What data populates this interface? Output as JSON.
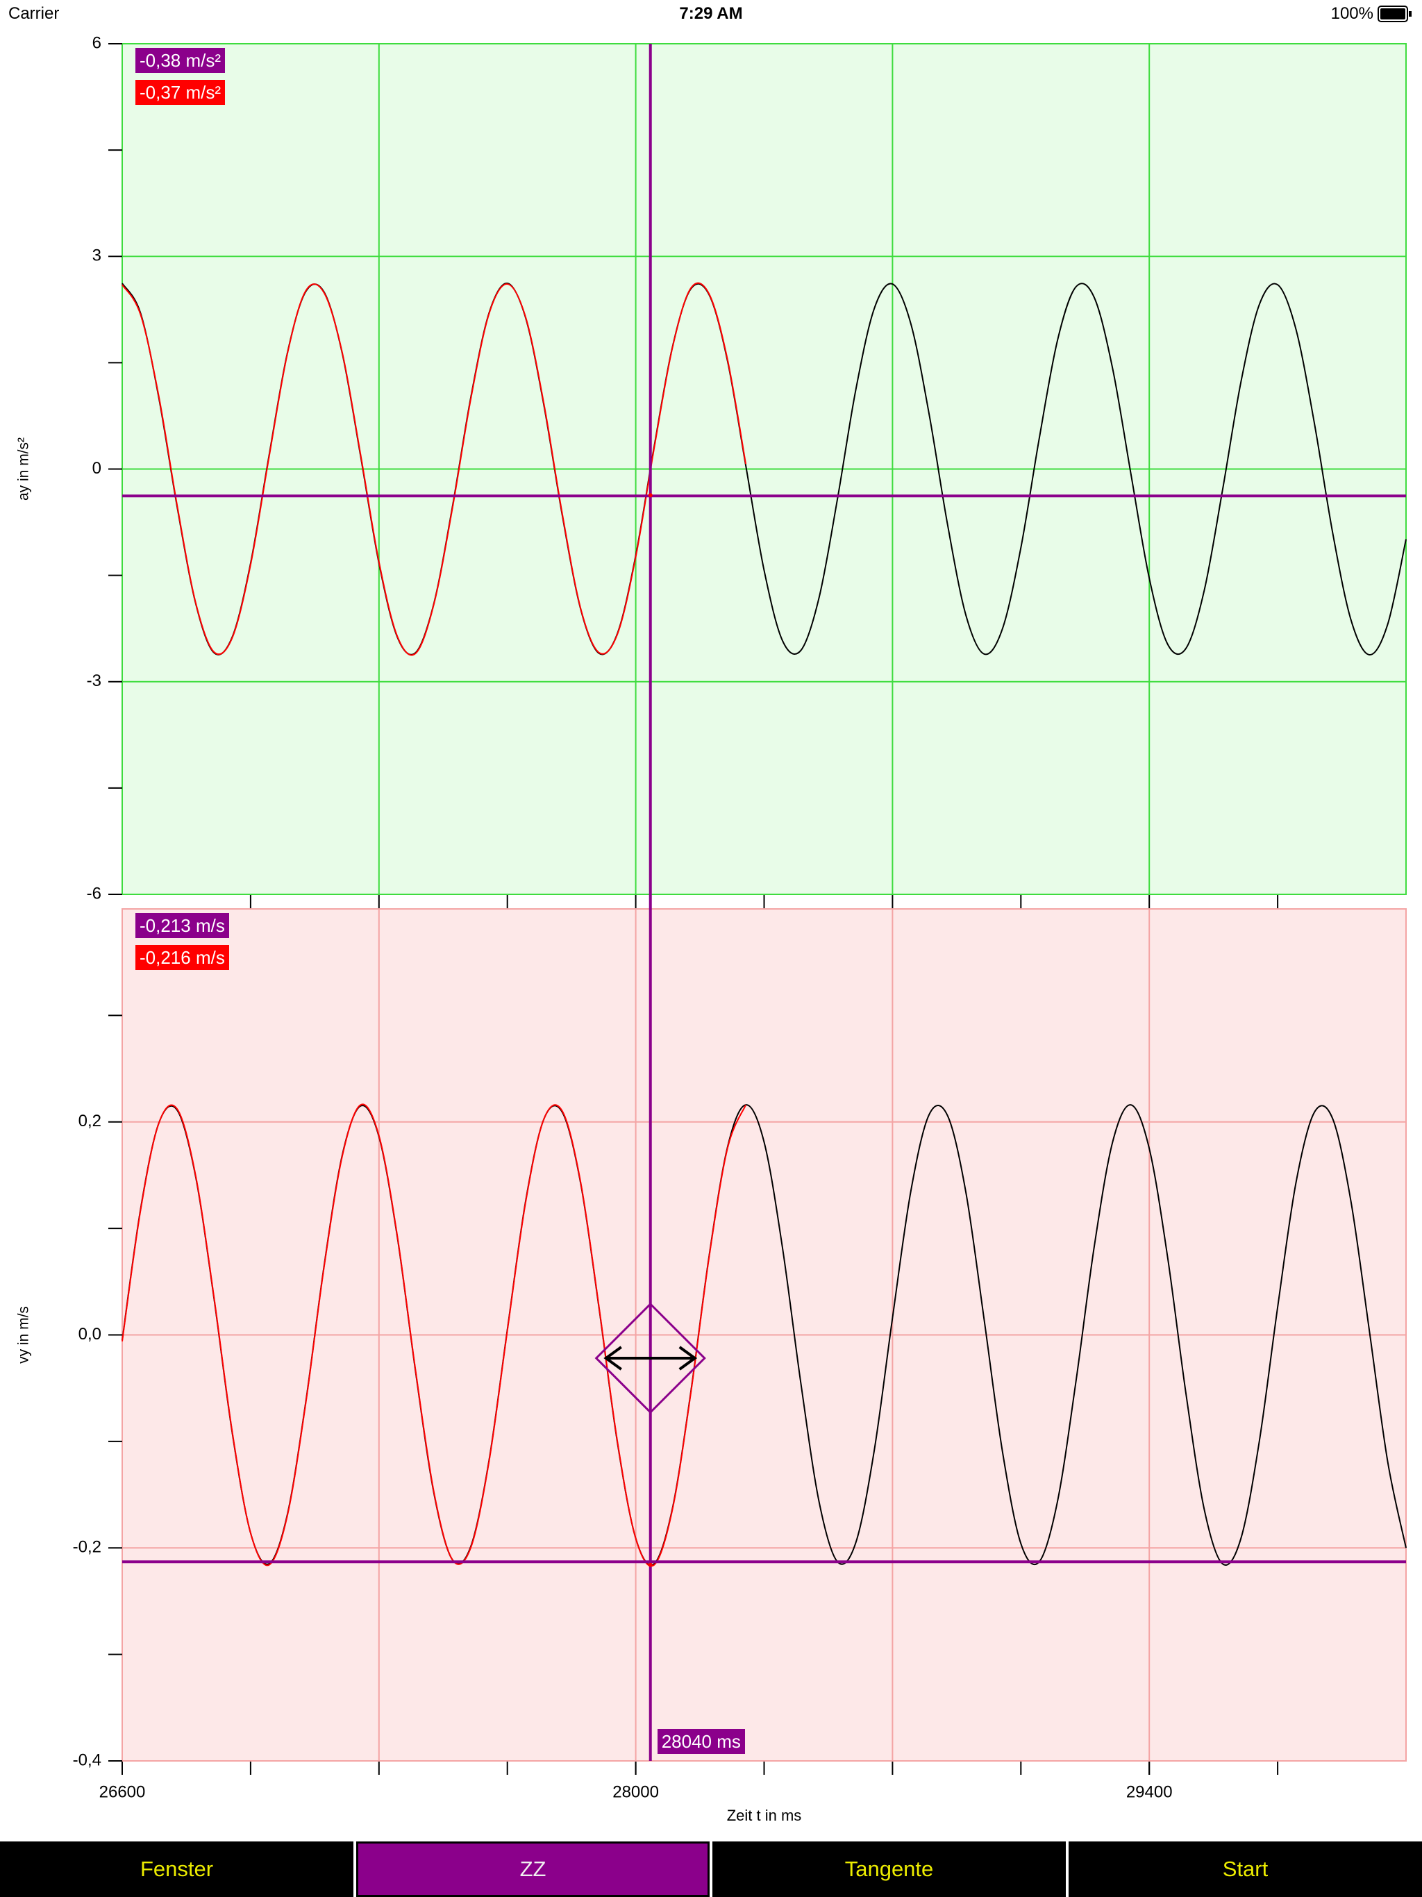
{
  "status_bar": {
    "carrier": "Carrier",
    "time": "7:29 AM",
    "battery": "100%"
  },
  "toolbar": {
    "buttons": [
      "Fenster",
      "ZZ",
      "Tangente",
      "Start"
    ],
    "active": "ZZ"
  },
  "chart_data": [
    {
      "type": "line",
      "y_label": "ay in m/s²",
      "background": "#e8fce8",
      "grid_color": "#3edc3e",
      "xlim": [
        26600,
        30100
      ],
      "xgrid": [
        27300,
        28000,
        28700,
        29400
      ],
      "xminorticks": [
        26950,
        27650,
        28350,
        29050,
        29750
      ],
      "ylim": [
        -6,
        6
      ],
      "yticks": [
        -6,
        -3,
        0,
        3,
        6
      ],
      "yminorticks": [
        -4.5,
        -1.5,
        1.5,
        4.5
      ],
      "x": [
        26600,
        26650,
        26700,
        26750,
        26800,
        26850,
        26900,
        26950,
        27000,
        27050,
        27100,
        27150,
        27200,
        27250,
        27300,
        27350,
        27400,
        27450,
        27500,
        27550,
        27600,
        27650,
        27700,
        27750,
        27800,
        27850,
        27900,
        27950,
        28000,
        28050,
        28100,
        28150,
        28200,
        28250,
        28300,
        28350,
        28400,
        28450,
        28500,
        28550,
        28600,
        28650,
        28700,
        28750,
        28800,
        28850,
        28900,
        28950,
        29000,
        29050,
        29100,
        29150,
        29200,
        29250,
        29300,
        29350,
        29400,
        29450,
        29500,
        29550,
        29600,
        29650,
        29700,
        29750,
        29800,
        29850,
        29900,
        29950,
        30000,
        30050,
        30100
      ],
      "series": [
        {
          "color": "#000000",
          "values": [
            2.62,
            2.2,
            1.0,
            -0.54,
            -1.89,
            -2.59,
            -2.37,
            -1.33,
            0.18,
            1.63,
            2.5,
            2.5,
            1.63,
            0.18,
            -1.33,
            -2.37,
            -2.59,
            -1.89,
            -0.54,
            1.0,
            2.2,
            2.62,
            2.13,
            0.89,
            -0.66,
            -1.98,
            -2.6,
            -2.32,
            -1.22,
            0.31,
            1.72,
            2.54,
            2.46,
            1.53,
            0.05,
            -1.43,
            -2.42,
            -2.56,
            -1.81,
            -0.42,
            1.12,
            2.26,
            2.61,
            2.05,
            0.77,
            -0.78,
            -2.06,
            -2.61,
            -2.25,
            -1.11,
            0.43,
            1.82,
            2.57,
            2.42,
            1.42,
            -0.07,
            -1.54,
            -2.47,
            -2.53,
            -1.71,
            -0.29,
            1.23,
            2.32,
            2.6,
            1.97,
            0.65,
            -0.9,
            -2.13,
            -2.62,
            -2.19,
            -0.99
          ]
        },
        {
          "color": "#ff0000",
          "values": [
            2.6,
            2.18,
            1.02,
            -0.52,
            -1.88,
            -2.58,
            -2.38,
            -1.35,
            0.16,
            1.62,
            2.51,
            2.49,
            1.64,
            0.2,
            -1.31,
            -2.36,
            -2.6,
            -1.9,
            -0.56,
            0.98,
            2.19,
            2.61,
            2.14,
            0.91,
            -0.64,
            -1.97,
            -2.59,
            -2.33,
            -1.24,
            0.29,
            1.71,
            2.55,
            2.47,
            1.55,
            0.07,
            null,
            null,
            null,
            null,
            null,
            null,
            null,
            null,
            null,
            null,
            null,
            null,
            null,
            null,
            null,
            null,
            null,
            null,
            null,
            null,
            null,
            null,
            null,
            null,
            null,
            null,
            null,
            null,
            null,
            null,
            null,
            null,
            null,
            null,
            null,
            null
          ]
        }
      ],
      "cursor": {
        "value": -0.38,
        "label": "-0,38 m/s²",
        "color": "#8b008b"
      },
      "fit": {
        "value": -0.37,
        "label": "-0,37 m/s²",
        "color": "#ff0000"
      }
    },
    {
      "type": "line",
      "y_label": "vy in m/s",
      "x_label": "Zeit t in ms",
      "background": "#fde8e8",
      "grid_color": "#f4a4a4",
      "xlim": [
        26600,
        30100
      ],
      "xticks": [
        26600,
        28000,
        29400
      ],
      "xgrid": [
        27300,
        28000,
        28700,
        29400
      ],
      "xminorticks": [
        26950,
        27650,
        28350,
        29050,
        29750
      ],
      "ylim": [
        -0.4,
        0.4
      ],
      "yticks": [
        {
          "value": -0.4,
          "label": "-0,4"
        },
        {
          "value": -0.2,
          "label": "-0,2"
        },
        {
          "value": 0.0,
          "label": "0,0"
        },
        {
          "value": 0.2,
          "label": "0,2"
        }
      ],
      "yminorticks": [
        -0.3,
        -0.1,
        0.1,
        0.3
      ],
      "x": [
        26600,
        26650,
        26700,
        26750,
        26800,
        26850,
        26900,
        26950,
        27000,
        27050,
        27100,
        27150,
        27200,
        27250,
        27300,
        27350,
        27400,
        27450,
        27500,
        27550,
        27600,
        27650,
        27700,
        27750,
        27800,
        27850,
        27900,
        27950,
        28000,
        28050,
        28100,
        28150,
        28200,
        28250,
        28300,
        28350,
        28400,
        28450,
        28500,
        28550,
        28600,
        28650,
        28700,
        28750,
        28800,
        28850,
        28900,
        28950,
        29000,
        29050,
        29100,
        29150,
        29200,
        29250,
        29300,
        29350,
        29400,
        29450,
        29500,
        29550,
        29600,
        29650,
        29700,
        29750,
        29800,
        29850,
        29900,
        29950,
        30000,
        30050,
        30100
      ],
      "series": [
        {
          "color": "#000000",
          "values": [
            -0.005,
            0.118,
            0.199,
            0.211,
            0.149,
            0.035,
            -0.092,
            -0.186,
            -0.215,
            -0.169,
            -0.064,
            0.064,
            0.169,
            0.215,
            0.186,
            0.092,
            -0.035,
            -0.149,
            -0.211,
            -0.199,
            -0.118,
            0.005,
            0.126,
            0.203,
            0.209,
            0.142,
            0.025,
            -0.101,
            -0.191,
            -0.215,
            -0.163,
            -0.054,
            0.074,
            0.176,
            0.216,
            0.181,
            0.082,
            -0.045,
            -0.157,
            -0.213,
            -0.195,
            -0.109,
            0.016,
            0.135,
            0.207,
            0.206,
            0.134,
            0.014,
            -0.11,
            -0.196,
            -0.213,
            -0.156,
            -0.044,
            0.083,
            0.181,
            0.216,
            0.175,
            0.073,
            -0.055,
            -0.164,
            -0.215,
            -0.191,
            -0.1,
            0.026,
            0.143,
            0.209,
            0.203,
            0.125,
            0.004,
            -0.119,
            -0.2
          ]
        },
        {
          "color": "#ff0000",
          "values": [
            -0.006,
            0.117,
            0.199,
            0.212,
            0.15,
            0.036,
            -0.091,
            -0.186,
            -0.216,
            -0.17,
            -0.065,
            0.063,
            0.168,
            0.216,
            0.187,
            0.093,
            -0.034,
            -0.148,
            -0.211,
            -0.2,
            -0.119,
            0.004,
            0.125,
            0.203,
            0.21,
            0.143,
            0.026,
            -0.1,
            -0.191,
            -0.216,
            -0.164,
            -0.055,
            0.073,
            0.175,
            0.216,
            null,
            null,
            null,
            null,
            null,
            null,
            null,
            null,
            null,
            null,
            null,
            null,
            null,
            null,
            null,
            null,
            null,
            null,
            null,
            null,
            null,
            null,
            null,
            null,
            null,
            null,
            null,
            null,
            null,
            null,
            null,
            null,
            null,
            null,
            null,
            null
          ]
        }
      ],
      "cursor": {
        "value": -0.213,
        "label": "-0,213 m/s",
        "color": "#8b008b"
      },
      "fit": {
        "value": -0.216,
        "label": "-0,216 m/s",
        "color": "#ff0000"
      },
      "cursor_time": {
        "value": 28040,
        "label": "28040 ms",
        "color": "#8b008b"
      }
    }
  ]
}
